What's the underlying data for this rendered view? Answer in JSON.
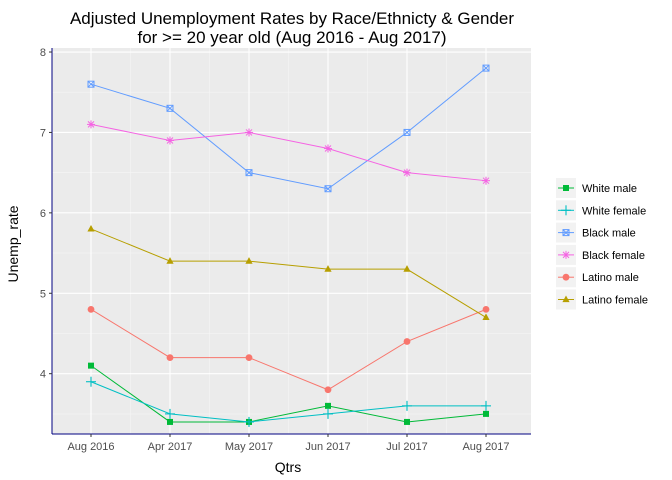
{
  "chart_data": {
    "type": "line",
    "title": "Adjusted Unemployment Rates by Race/Ethnicty & Gender",
    "subtitle": "for >= 20 year old (Aug 2016 - Aug 2017)",
    "xlabel": "Qtrs",
    "ylabel": "Unemp_rate",
    "categories": [
      "Aug 2016",
      "Apr 2017",
      "May 2017",
      "Jun 2017",
      "Jul 2017",
      "Aug 2017"
    ],
    "ylim": [
      3.25,
      8.05
    ],
    "yticks": [
      4,
      5,
      6,
      7,
      8
    ],
    "grid": true,
    "legend_position": "right",
    "series": [
      {
        "name": "White male",
        "color": "#00BA38",
        "marker": "square",
        "values": [
          4.1,
          3.4,
          3.4,
          3.6,
          3.4,
          3.5
        ]
      },
      {
        "name": "White female",
        "color": "#00BFC4",
        "marker": "plus",
        "values": [
          3.9,
          3.5,
          3.4,
          3.5,
          3.6,
          3.6
        ]
      },
      {
        "name": "Black male",
        "color": "#619CFF",
        "marker": "square-cross",
        "values": [
          7.6,
          7.3,
          6.5,
          6.3,
          7.0,
          7.8
        ]
      },
      {
        "name": "Black female",
        "color": "#F564E3",
        "marker": "asterisk",
        "values": [
          7.1,
          6.9,
          7.0,
          6.8,
          6.5,
          6.4
        ]
      },
      {
        "name": "Latino male",
        "color": "#F8766D",
        "marker": "circle",
        "values": [
          4.8,
          4.2,
          4.2,
          3.8,
          4.4,
          4.8
        ]
      },
      {
        "name": "Latino female",
        "color": "#B79F00",
        "marker": "triangle",
        "values": [
          5.8,
          5.4,
          5.4,
          5.3,
          5.3,
          4.7
        ]
      }
    ]
  }
}
